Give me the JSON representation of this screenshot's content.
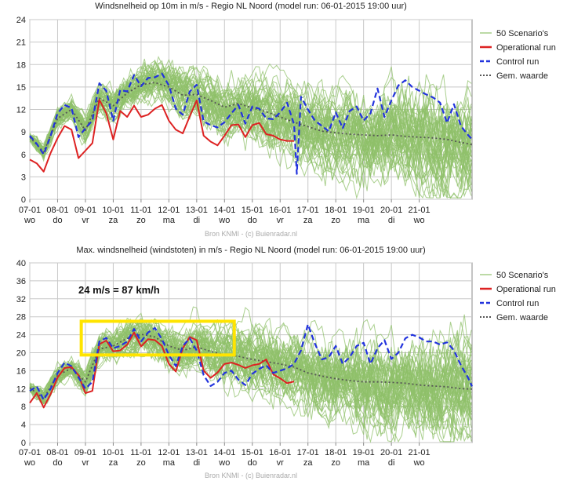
{
  "colors": {
    "scenario": "#8fc06a",
    "operational": "#dd2222",
    "control": "#2233dd",
    "mean": "#555555",
    "grid": "#c8c8c8",
    "highlight": "#ffe400"
  },
  "legend": [
    {
      "key": "scenario",
      "label": "50 Scenario's",
      "style": "thin"
    },
    {
      "key": "operational",
      "label": "Operational run",
      "style": "solid"
    },
    {
      "key": "control",
      "label": "Control run",
      "style": "dashed"
    },
    {
      "key": "mean",
      "label": "Gem. waarde",
      "style": "dotted"
    }
  ],
  "annotation": "24 m/s = 87 km/h",
  "chart_data": [
    {
      "type": "line",
      "title": "Windsnelheid op 10m in m/s - Regio NL Noord (model run: 06-01-2015 19:00 uur)",
      "source": "Bron KNMI - (c) Buienradar.nl",
      "ylim": [
        0,
        24
      ],
      "yticks": [
        0,
        3,
        6,
        9,
        12,
        15,
        18,
        21,
        24
      ],
      "xlim": [
        0,
        15.9
      ],
      "day_ticks": [
        {
          "date": "07-01",
          "day": "wo"
        },
        {
          "date": "08-01",
          "day": "do"
        },
        {
          "date": "09-01",
          "day": "vr"
        },
        {
          "date": "10-01",
          "day": "za"
        },
        {
          "date": "11-01",
          "day": "zo"
        },
        {
          "date": "12-01",
          "day": "ma"
        },
        {
          "date": "13-01",
          "day": "di"
        },
        {
          "date": "14-01",
          "day": "wo"
        },
        {
          "date": "15-01",
          "day": "do"
        },
        {
          "date": "16-01",
          "day": "vr"
        },
        {
          "date": "17-01",
          "day": "za"
        },
        {
          "date": "18-01",
          "day": "zo"
        },
        {
          "date": "19-01",
          "day": "ma"
        },
        {
          "date": "20-01",
          "day": "di"
        },
        {
          "date": "21-01",
          "day": "wo"
        }
      ],
      "grid": true,
      "legend_position": "right",
      "series": [
        {
          "name": "Operational run",
          "x": [
            0,
            0.25,
            0.5,
            0.75,
            1,
            1.25,
            1.5,
            1.75,
            2,
            2.25,
            2.5,
            2.75,
            3,
            3.25,
            3.5,
            3.75,
            4,
            4.25,
            4.5,
            4.75,
            5,
            5.25,
            5.5,
            5.75,
            6,
            6.25,
            6.5,
            6.75,
            7,
            7.25,
            7.5,
            7.75,
            8,
            8.25,
            8.5,
            8.75,
            9,
            9.25,
            9.5
          ],
          "y": [
            5.3,
            4.8,
            3.7,
            6.2,
            8.2,
            9.8,
            9.3,
            5.5,
            6.5,
            7.5,
            13.3,
            11.5,
            8.0,
            11.8,
            11.0,
            12.5,
            11.0,
            11.3,
            12.1,
            12.6,
            10.5,
            9.3,
            8.8,
            11.1,
            13.2,
            8.5,
            7.7,
            7.2,
            8.5,
            9.9,
            10.0,
            8.3,
            9.9,
            10.2,
            8.7,
            8.5,
            8.0,
            7.8,
            7.8
          ]
        },
        {
          "name": "Control run",
          "x": [
            0,
            0.25,
            0.5,
            0.75,
            1,
            1.25,
            1.5,
            1.75,
            2,
            2.25,
            2.5,
            2.75,
            3,
            3.25,
            3.5,
            3.75,
            4,
            4.25,
            4.5,
            4.75,
            5,
            5.25,
            5.5,
            5.75,
            6,
            6.25,
            6.5,
            6.75,
            7,
            7.25,
            7.5,
            7.75,
            8,
            8.25,
            8.5,
            8.75,
            9,
            9.25,
            9.5,
            9.6,
            9.75,
            10,
            10.25,
            10.5,
            10.75,
            11,
            11.25,
            11.5,
            11.75,
            12,
            12.25,
            12.5,
            12.75,
            13,
            13.25,
            13.5,
            13.75,
            14,
            14.25,
            14.5,
            14.75,
            15,
            15.25,
            15.5,
            15.75,
            15.9
          ],
          "y": [
            8.5,
            7.4,
            6.0,
            8.5,
            11.5,
            12.6,
            12.2,
            8.3,
            9.5,
            10.5,
            15.5,
            14.5,
            10.5,
            14.6,
            14.4,
            16.6,
            15.1,
            16.2,
            16.3,
            16.8,
            15.2,
            12.1,
            11.3,
            14.4,
            15.3,
            10.4,
            9.9,
            9.6,
            10.3,
            11.5,
            12.6,
            10.1,
            12.4,
            12.1,
            10.8,
            10.7,
            11.6,
            12.9,
            10.0,
            3.4,
            13.7,
            12.0,
            10.5,
            9.8,
            9.1,
            11.6,
            9.5,
            11.8,
            12.4,
            10.5,
            11.5,
            14.8,
            11.0,
            13.2,
            15.2,
            15.9,
            15.0,
            14.5,
            14.0,
            13.6,
            12.9,
            10.2,
            12.7,
            9.8,
            8.6,
            8.0
          ]
        },
        {
          "name": "Gem. waarde",
          "x": [
            0,
            0.5,
            1,
            1.5,
            2,
            2.5,
            3,
            3.5,
            4,
            4.5,
            5,
            5.5,
            6,
            6.5,
            7,
            7.5,
            8,
            8.5,
            9,
            9.5,
            10,
            10.5,
            11,
            11.5,
            12,
            12.5,
            13,
            13.5,
            14,
            14.5,
            15,
            15.5,
            15.9
          ],
          "y": [
            8.3,
            6.3,
            10.8,
            12.0,
            9.2,
            13.5,
            12.5,
            14.2,
            15.3,
            15.6,
            15.0,
            13.9,
            14.0,
            13.2,
            12.3,
            12.8,
            12.2,
            11.7,
            11.0,
            10.3,
            9.7,
            9.1,
            8.9,
            8.7,
            8.6,
            8.5,
            8.6,
            8.4,
            8.3,
            8.2,
            8.0,
            7.6,
            7.3
          ]
        }
      ]
    },
    {
      "type": "line",
      "title": "Max. windsnelheid (windstoten) in m/s - Regio NL Noord (model run: 06-01-2015 19:00 uur)",
      "source": "Bron KNMI - (c) Buienradar.nl",
      "ylim": [
        0,
        40
      ],
      "yticks": [
        0,
        4,
        8,
        12,
        16,
        20,
        24,
        28,
        32,
        36,
        40
      ],
      "xlim": [
        0,
        15.9
      ],
      "day_ticks": [
        {
          "date": "07-01",
          "day": "wo"
        },
        {
          "date": "08-01",
          "day": "do"
        },
        {
          "date": "09-01",
          "day": "vr"
        },
        {
          "date": "10-01",
          "day": "za"
        },
        {
          "date": "11-01",
          "day": "zo"
        },
        {
          "date": "12-01",
          "day": "ma"
        },
        {
          "date": "13-01",
          "day": "di"
        },
        {
          "date": "14-01",
          "day": "wo"
        },
        {
          "date": "15-01",
          "day": "do"
        },
        {
          "date": "16-01",
          "day": "vr"
        },
        {
          "date": "17-01",
          "day": "za"
        },
        {
          "date": "18-01",
          "day": "zo"
        },
        {
          "date": "19-01",
          "day": "ma"
        },
        {
          "date": "20-01",
          "day": "di"
        },
        {
          "date": "21-01",
          "day": "wo"
        }
      ],
      "grid": true,
      "legend_position": "right",
      "highlight_box": {
        "x": [
          1.85,
          7.35
        ],
        "y": [
          19.5,
          27.0
        ]
      },
      "series": [
        {
          "name": "Operational run",
          "x": [
            0,
            0.25,
            0.5,
            0.75,
            1,
            1.25,
            1.5,
            1.75,
            2,
            2.25,
            2.5,
            2.75,
            3,
            3.25,
            3.5,
            3.75,
            4,
            4.25,
            4.5,
            4.75,
            5,
            5.25,
            5.5,
            5.75,
            6,
            6.25,
            6.5,
            6.75,
            7,
            7.25,
            7.5,
            7.75,
            8,
            8.25,
            8.5,
            8.75,
            9,
            9.25,
            9.5
          ],
          "y": [
            8.8,
            11.0,
            7.8,
            10.8,
            14.5,
            16.6,
            16.8,
            15.0,
            11.0,
            11.5,
            21.9,
            22.7,
            20.3,
            20.5,
            21.8,
            24.5,
            21.4,
            23.0,
            22.8,
            21.5,
            17.5,
            15.8,
            21.0,
            23.5,
            22.8,
            16.0,
            14.4,
            15.6,
            17.5,
            17.8,
            17.3,
            16.6,
            17.2,
            17.5,
            18.5,
            15.2,
            14.3,
            13.2,
            13.6
          ]
        },
        {
          "name": "Control run",
          "x": [
            0,
            0.25,
            0.5,
            0.75,
            1,
            1.25,
            1.5,
            1.75,
            2,
            2.25,
            2.5,
            2.75,
            3,
            3.25,
            3.5,
            3.75,
            4,
            4.25,
            4.5,
            4.75,
            5,
            5.25,
            5.5,
            5.75,
            6,
            6.25,
            6.5,
            6.75,
            7,
            7.25,
            7.5,
            7.75,
            8,
            8.25,
            8.5,
            8.75,
            9,
            9.25,
            9.5,
            9.75,
            10,
            10.25,
            10.5,
            10.75,
            11,
            11.25,
            11.5,
            11.75,
            12,
            12.25,
            12.5,
            12.75,
            13,
            13.25,
            13.5,
            13.75,
            14,
            14.25,
            14.5,
            14.75,
            15,
            15.25,
            15.5,
            15.75,
            15.9
          ],
          "y": [
            11.5,
            12.5,
            9.5,
            12.0,
            15.5,
            17.8,
            17.0,
            14.5,
            12.0,
            13.5,
            22.5,
            23.3,
            21.0,
            21.5,
            22.5,
            25.3,
            22.5,
            24.5,
            25.5,
            23.0,
            19.5,
            17.0,
            21.5,
            23.2,
            20.5,
            15.0,
            12.6,
            13.5,
            15.5,
            16.0,
            14.0,
            12.8,
            15.3,
            16.4,
            17.2,
            15.5,
            16.0,
            16.5,
            17.5,
            20.5,
            26.3,
            22.0,
            18.5,
            19.0,
            21.5,
            17.5,
            19.0,
            21.5,
            22.2,
            17.5,
            21.0,
            22.8,
            18.6,
            20.0,
            23.2,
            24.0,
            23.4,
            22.5,
            22.5,
            21.8,
            22.3,
            20.5,
            17.2,
            14.5,
            12.5
          ]
        },
        {
          "name": "Gem. waarde",
          "x": [
            0,
            0.5,
            1,
            1.5,
            2,
            2.5,
            3,
            3.5,
            4,
            4.5,
            5,
            5.5,
            6,
            6.5,
            7,
            7.5,
            8,
            8.5,
            9,
            9.5,
            10,
            10.5,
            11,
            11.5,
            12,
            12.5,
            13,
            13.5,
            14,
            14.5,
            15,
            15.5,
            15.9
          ],
          "y": [
            12.2,
            9.8,
            15.0,
            16.5,
            13.5,
            20.8,
            21.5,
            23.2,
            24.1,
            23.5,
            21.5,
            20.5,
            21.3,
            20.3,
            19.5,
            19.2,
            18.5,
            18.0,
            17.5,
            16.8,
            15.5,
            14.8,
            14.2,
            13.8,
            13.5,
            13.5,
            13.4,
            13.2,
            12.8,
            12.6,
            12.4,
            12.0,
            11.9
          ]
        }
      ]
    }
  ]
}
